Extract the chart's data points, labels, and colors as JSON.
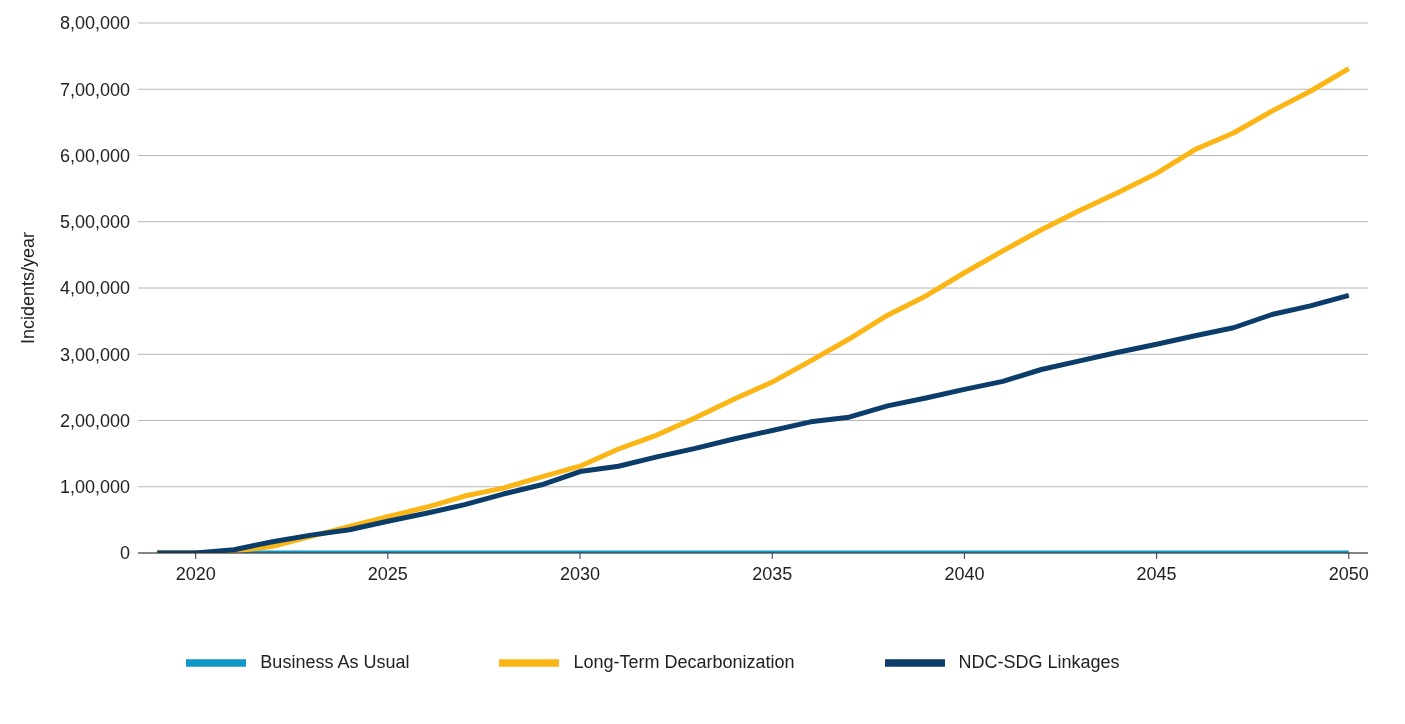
{
  "chart_data": {
    "type": "line",
    "ylabel": "Incidents/year",
    "x": [
      2019,
      2020,
      2021,
      2022,
      2023,
      2024,
      2025,
      2026,
      2027,
      2028,
      2029,
      2030,
      2031,
      2032,
      2033,
      2034,
      2035,
      2036,
      2037,
      2038,
      2039,
      2040,
      2041,
      2042,
      2043,
      2044,
      2045,
      2046,
      2047,
      2048,
      2049,
      2050
    ],
    "xlim": [
      2018.5,
      2050.5
    ],
    "xticks": [
      2020,
      2025,
      2030,
      2035,
      2040,
      2045,
      2050
    ],
    "ylim": [
      0,
      800000
    ],
    "yticks": [
      0,
      {
        "value": 100000,
        "label": "1,00,000"
      },
      {
        "value": 200000,
        "label": "2,00,000"
      },
      {
        "value": 300000,
        "label": "3,00,000"
      },
      {
        "value": 400000,
        "label": "4,00,000"
      },
      {
        "value": 500000,
        "label": "5,00,000"
      },
      {
        "value": 600000,
        "label": "6,00,000"
      },
      {
        "value": 700000,
        "label": "7,00,000"
      },
      {
        "value": 800000,
        "label": "8,00,000"
      }
    ],
    "grid": "y",
    "legend": "bottom",
    "marker": "none",
    "line_style": "solid",
    "series": [
      {
        "name": "Business As Usual",
        "color": "#0f98c8",
        "values": [
          0,
          0,
          0,
          0,
          0,
          0,
          0,
          0,
          0,
          0,
          0,
          0,
          0,
          0,
          0,
          0,
          0,
          0,
          0,
          0,
          0,
          0,
          0,
          0,
          0,
          0,
          0,
          0,
          0,
          0,
          0,
          0
        ]
      },
      {
        "name": "Long-Term Decarbonization",
        "color": "#fbb515",
        "values": [
          0,
          0,
          3000,
          10000,
          25000,
          40000,
          55000,
          69000,
          86000,
          98000,
          115000,
          131000,
          157000,
          178000,
          204000,
          232000,
          258000,
          290000,
          323000,
          359000,
          388000,
          423000,
          456000,
          488000,
          517000,
          544000,
          573000,
          609000,
          634000,
          667000,
          697000,
          731000
        ]
      },
      {
        "name": "NDC-SDG Linkages",
        "color": "#0b3d6b",
        "values": [
          0,
          0,
          5000,
          17000,
          27000,
          35000,
          48000,
          60000,
          73000,
          89000,
          103000,
          123000,
          131000,
          145000,
          158000,
          172000,
          185000,
          198000,
          205000,
          222000,
          234000,
          247000,
          259000,
          277000,
          290000,
          303000,
          315000,
          328000,
          340000,
          360000,
          373000,
          389000
        ]
      }
    ]
  }
}
